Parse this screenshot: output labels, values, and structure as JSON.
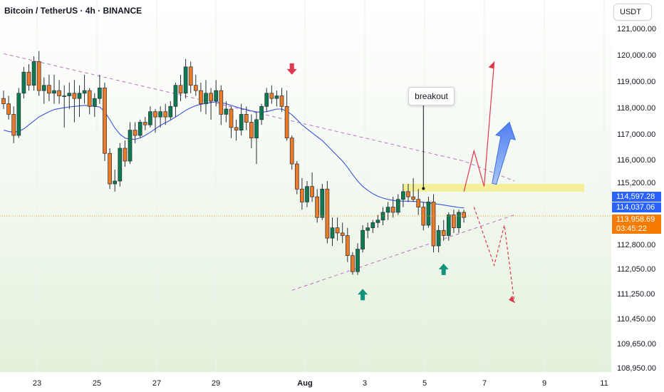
{
  "header": {
    "title": "Bitcoin / TetherUS · 4h · BINANCE",
    "currency_button": "USDT"
  },
  "chart_data": {
    "type": "candlestick",
    "title": "Bitcoin / TetherUS · 4h · BINANCE",
    "y_axis": {
      "label": "USDT",
      "ticks": [
        "121,000.00",
        "120,000.00",
        "119,000.00",
        "118,000.00",
        "117,000.00",
        "116,000.00",
        "115,200.00",
        "112,800.00",
        "112,050.00",
        "111,250.00",
        "110,450.00",
        "109,650.00",
        "108,950.00"
      ]
    },
    "x_axis": {
      "ticks": [
        "23",
        "25",
        "27",
        "29",
        "Aug",
        "3",
        "5",
        "7",
        "9",
        "11"
      ]
    },
    "price_labels": [
      {
        "price": "114,597.28",
        "color": "#2962ff"
      },
      {
        "price": "114,037.06",
        "color": "#2962ff"
      },
      {
        "price": "113,958.69",
        "countdown": "03:45:22",
        "color": "#f57c00"
      }
    ],
    "annotation": "breakout",
    "colors": {
      "up": "#0e7a4f",
      "down": "#ed7a25",
      "moving_average": "#3b55d9",
      "trendline": "#c070c8",
      "bullish_path": "#e0394f",
      "bearish_path": "#e0394f",
      "support_zone": "#f5ee8a",
      "marker_up": "#12947c",
      "marker_down": "#e0394f"
    },
    "candles": [
      [
        118400,
        118700,
        118000,
        118200
      ],
      [
        118200,
        118500,
        117600,
        117800
      ],
      [
        117800,
        118100,
        116700,
        117000
      ],
      [
        117000,
        118800,
        116900,
        118600
      ],
      [
        118600,
        119600,
        118400,
        119400
      ],
      [
        119400,
        119700,
        118700,
        118900
      ],
      [
        118900,
        120000,
        118700,
        119800
      ],
      [
        119800,
        120200,
        118500,
        118700
      ],
      [
        118700,
        119200,
        118200,
        118900
      ],
      [
        118900,
        119300,
        118300,
        118600
      ],
      [
        118600,
        119300,
        118200,
        118700
      ],
      [
        118700,
        119100,
        118200,
        118500
      ],
      [
        118500,
        118900,
        117300,
        118500
      ],
      [
        118500,
        119000,
        118000,
        118600
      ],
      [
        118600,
        119100,
        117500,
        118400
      ],
      [
        118400,
        118900,
        117700,
        118600
      ],
      [
        118600,
        119300,
        118200,
        118700
      ],
      [
        118700,
        118800,
        117800,
        118100
      ],
      [
        118100,
        118600,
        117700,
        118400
      ],
      [
        118400,
        119300,
        118200,
        118800
      ],
      [
        118800,
        119000,
        116000,
        116300
      ],
      [
        116300,
        116500,
        115000,
        115200
      ],
      [
        115200,
        115700,
        114900,
        115300
      ],
      [
        115300,
        116700,
        115100,
        116500
      ],
      [
        116500,
        116800,
        115800,
        116000
      ],
      [
        116000,
        117500,
        115900,
        117200
      ],
      [
        117200,
        117500,
        116700,
        117000
      ],
      [
        117000,
        117600,
        116900,
        117500
      ],
      [
        117500,
        117700,
        117200,
        117400
      ],
      [
        117400,
        118100,
        117300,
        117900
      ],
      [
        117900,
        118000,
        117100,
        117700
      ],
      [
        117700,
        118100,
        117300,
        117900
      ],
      [
        117900,
        118200,
        117400,
        117700
      ],
      [
        117700,
        118300,
        117600,
        118100
      ],
      [
        118100,
        119000,
        117700,
        118900
      ],
      [
        118900,
        119300,
        118300,
        118600
      ],
      [
        118600,
        119900,
        118400,
        119600
      ],
      [
        119600,
        119800,
        118600,
        118900
      ],
      [
        118900,
        119300,
        118500,
        118700
      ],
      [
        118700,
        119000,
        117900,
        118200
      ],
      [
        118200,
        119100,
        117800,
        118600
      ],
      [
        118600,
        118800,
        117600,
        118300
      ],
      [
        118300,
        119100,
        118100,
        118700
      ],
      [
        118700,
        118900,
        117400,
        117800
      ],
      [
        117800,
        118300,
        117500,
        118000
      ],
      [
        118000,
        118100,
        116900,
        117300
      ],
      [
        117300,
        117600,
        116800,
        117200
      ],
      [
        117200,
        118200,
        117000,
        117800
      ],
      [
        117800,
        118100,
        117200,
        117500
      ],
      [
        117500,
        117800,
        116500,
        116900
      ],
      [
        116900,
        117900,
        115900,
        117600
      ],
      [
        117600,
        118200,
        117400,
        118100
      ],
      [
        118100,
        118800,
        117900,
        118600
      ],
      [
        118600,
        118900,
        118200,
        118400
      ],
      [
        118400,
        118700,
        118100,
        118500
      ],
      [
        118500,
        118800,
        117900,
        118100
      ],
      [
        118100,
        118700,
        116800,
        116900
      ],
      [
        116900,
        117000,
        115700,
        115900
      ],
      [
        115900,
        116000,
        114800,
        115000
      ],
      [
        115000,
        115400,
        114200,
        114500
      ],
      [
        114500,
        115300,
        114300,
        115100
      ],
      [
        115100,
        115600,
        114500,
        114700
      ],
      [
        114700,
        115000,
        113700,
        113900
      ],
      [
        113900,
        115200,
        113800,
        115000
      ],
      [
        115000,
        115300,
        112900,
        113100
      ],
      [
        113100,
        113900,
        112800,
        113500
      ],
      [
        113500,
        113900,
        113000,
        113300
      ],
      [
        113300,
        113700,
        112900,
        113200
      ],
      [
        113200,
        113500,
        112300,
        112500
      ],
      [
        112500,
        112600,
        111900,
        112000
      ],
      [
        112000,
        112900,
        111900,
        112700
      ],
      [
        112700,
        113600,
        112600,
        113400
      ],
      [
        113400,
        113700,
        113100,
        113500
      ],
      [
        113500,
        113800,
        113300,
        113700
      ],
      [
        113700,
        114000,
        113500,
        113800
      ],
      [
        113800,
        114300,
        113600,
        114100
      ],
      [
        114100,
        114500,
        113800,
        114300
      ],
      [
        114300,
        114700,
        113900,
        114100
      ],
      [
        114100,
        114800,
        114000,
        114600
      ],
      [
        114600,
        115200,
        114300,
        114900
      ],
      [
        114900,
        115200,
        114500,
        114700
      ],
      [
        114700,
        115400,
        114500,
        114600
      ],
      [
        114600,
        115000,
        114000,
        114300
      ],
      [
        114300,
        114500,
        113400,
        113600
      ],
      [
        113600,
        114700,
        113500,
        114500
      ],
      [
        114500,
        114800,
        112600,
        112800
      ],
      [
        112800,
        113600,
        112600,
        113400
      ],
      [
        113400,
        113800,
        113000,
        113200
      ],
      [
        113200,
        114100,
        113000,
        114000
      ],
      [
        114000,
        114200,
        113300,
        113500
      ],
      [
        113500,
        114200,
        113300,
        114100
      ],
      [
        114100,
        114200,
        113700,
        113900
      ]
    ],
    "moving_average": [
      117200,
      117150,
      117120,
      117160,
      117250,
      117400,
      117550,
      117700,
      117800,
      117900,
      117980,
      118020,
      118050,
      118080,
      118100,
      118120,
      118140,
      118130,
      118100,
      118080,
      117900,
      117600,
      117280,
      117050,
      116900,
      116850,
      116850,
      116900,
      117000,
      117120,
      117250,
      117380,
      117480,
      117580,
      117700,
      117820,
      117950,
      118050,
      118130,
      118180,
      118220,
      118250,
      118270,
      118250,
      118200,
      118140,
      118080,
      118020,
      117980,
      117930,
      117890,
      117880,
      117900,
      117950,
      118000,
      118000,
      117920,
      117780,
      117600,
      117400,
      117250,
      117100,
      116950,
      116800,
      116600,
      116400,
      116200,
      116000,
      115780,
      115530,
      115300,
      115100,
      114950,
      114820,
      114720,
      114650,
      114600,
      114560,
      114540,
      114530,
      114530,
      114520,
      114510,
      114490,
      114460,
      114440,
      114410,
      114380,
      114350,
      114320,
      114290,
      114270
    ],
    "trendlines": {
      "descending_resistance": [
        [
          0,
          120100
        ],
        [
          91,
          116000
        ],
        [
          101,
          115300
        ]
      ],
      "ascending_support": [
        [
          57,
          111400
        ],
        [
          101,
          114000
        ]
      ]
    },
    "support_zone": {
      "from": 114900,
      "to": 115200
    },
    "projections": {
      "bullish": [
        [
          91,
          114900
        ],
        [
          93,
          116400
        ],
        [
          95,
          115100
        ],
        [
          97,
          119800
        ]
      ],
      "bullish_arrow": [
        [
          97,
          115200
        ],
        [
          100,
          117500
        ]
      ],
      "bearish": [
        [
          93,
          114300
        ],
        [
          97,
          112200
        ],
        [
          99,
          113600
        ],
        [
          101,
          111000
        ]
      ]
    }
  }
}
